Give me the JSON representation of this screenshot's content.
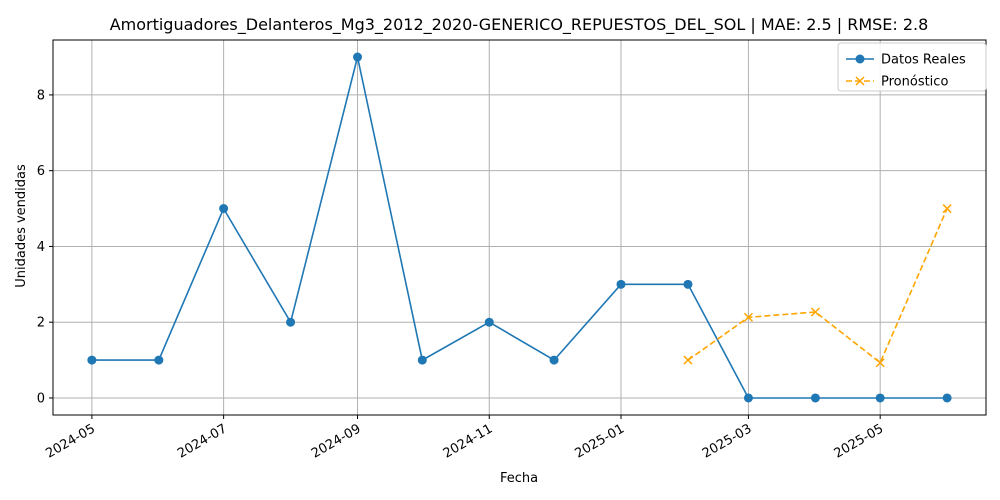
{
  "chart_data": {
    "type": "line",
    "title": "Amortiguadores_Delanteros_Mg3_2012_2020-GENERICO_REPUESTOS_DEL_SOL | MAE: 2.5 | RMSE: 2.8",
    "xlabel": "Fecha",
    "ylabel": "Unidades vendidas",
    "xlim": [
      "2024-04-13",
      "2025-06-19"
    ],
    "ylim": [
      -0.45,
      9.45
    ],
    "x_ticks": [
      "2024-05",
      "2024-07",
      "2024-09",
      "2024-11",
      "2025-01",
      "2025-03",
      "2025-05"
    ],
    "y_ticks": [
      0,
      2,
      4,
      6,
      8
    ],
    "grid": true,
    "legend_position": "top-right",
    "series": [
      {
        "name": "Datos Reales",
        "color": "#1f77b4",
        "style": "solid",
        "marker": "circle",
        "x": [
          "2024-05-01",
          "2024-06-01",
          "2024-07-01",
          "2024-08-01",
          "2024-09-01",
          "2024-10-01",
          "2024-11-01",
          "2024-12-01",
          "2025-01-01",
          "2025-02-01",
          "2025-03-01",
          "2025-04-01",
          "2025-05-01",
          "2025-06-01"
        ],
        "y": [
          1,
          1,
          5,
          2,
          9,
          1,
          2,
          1,
          3,
          3,
          0,
          0,
          0,
          0
        ]
      },
      {
        "name": "Pronóstico",
        "color": "#ffa500",
        "style": "dashed",
        "marker": "x",
        "x": [
          "2025-02-01",
          "2025-03-01",
          "2025-04-01",
          "2025-05-01",
          "2025-06-01"
        ],
        "y": [
          1.0,
          2.13,
          2.27,
          0.93,
          5.0
        ]
      }
    ]
  }
}
